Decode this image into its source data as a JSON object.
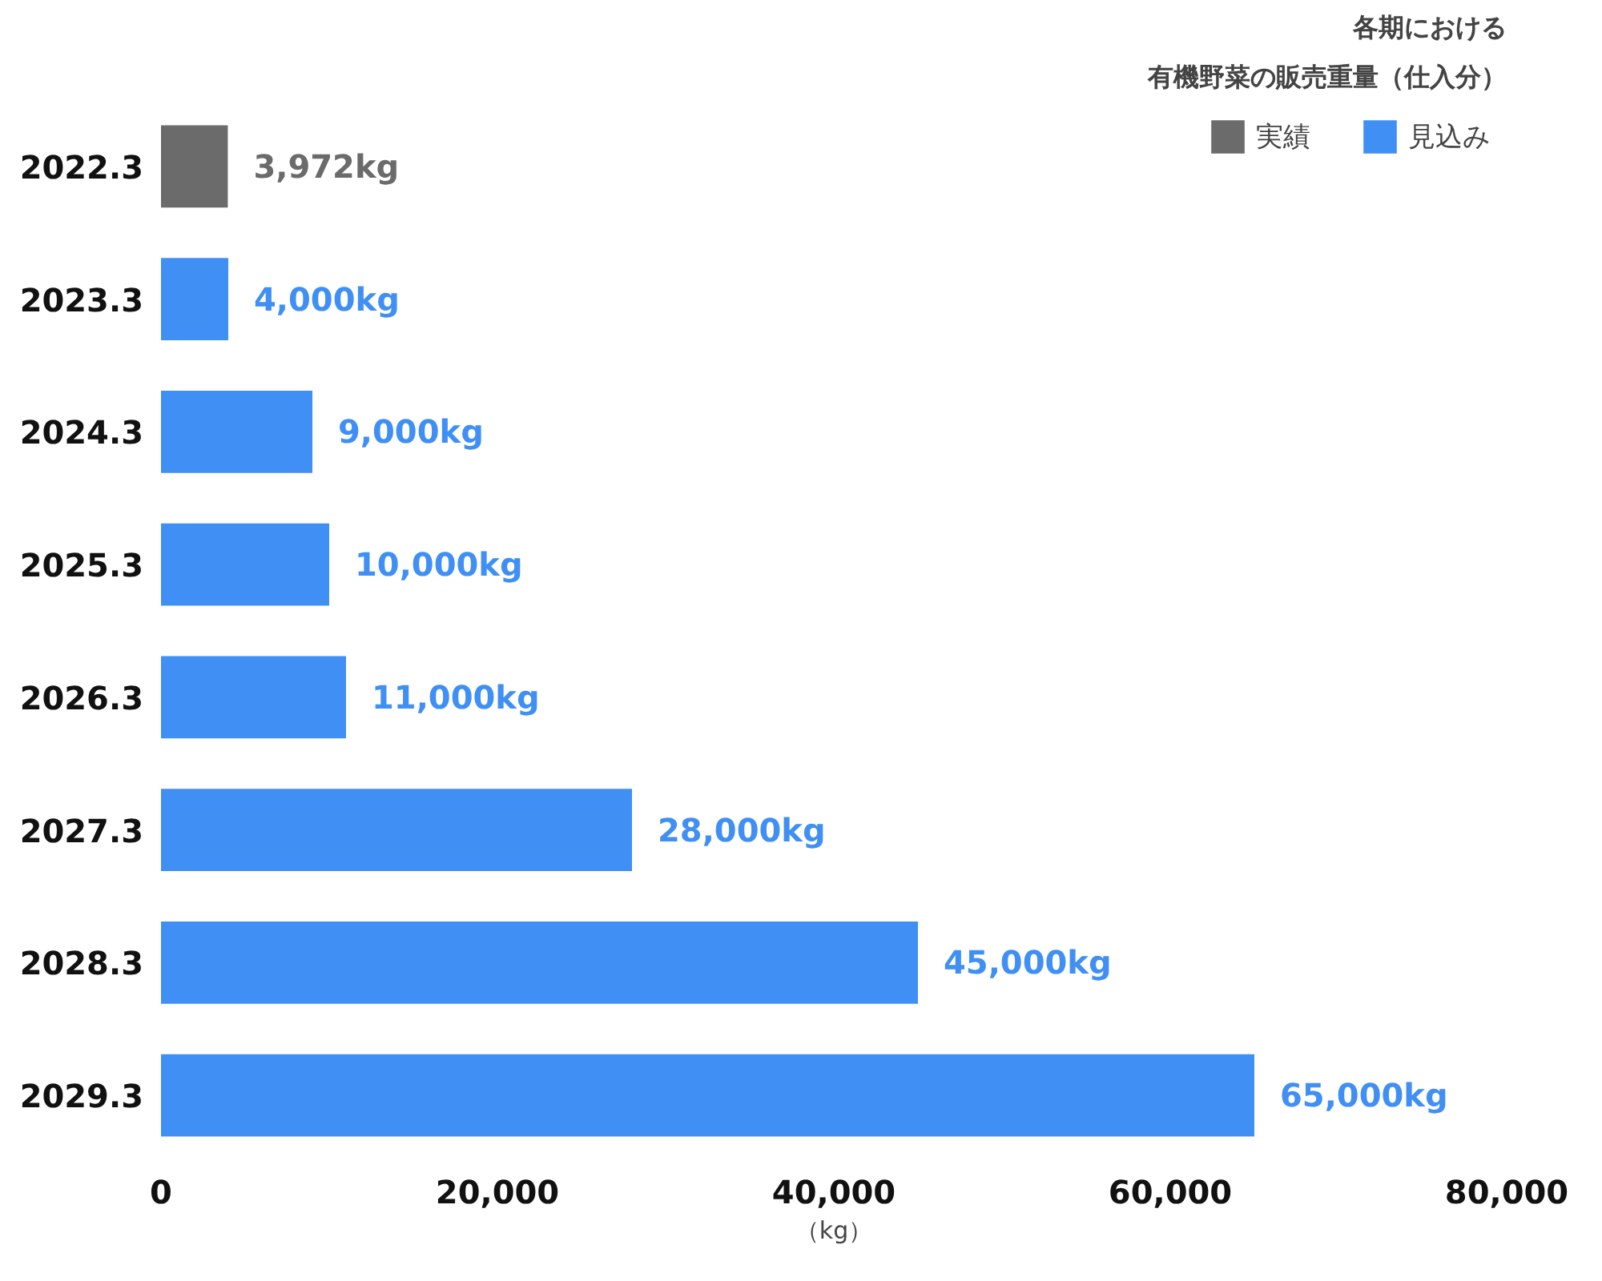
{
  "chart_data": {
    "type": "bar",
    "orientation": "horizontal",
    "title": "各期における",
    "subtitle": "有機野菜の販売重量（仕入分）",
    "xlabel": "（kg）",
    "categories": [
      "2022.3",
      "2023.3",
      "2024.3",
      "2025.3",
      "2026.3",
      "2027.3",
      "2028.3",
      "2029.3"
    ],
    "series": [
      {
        "name": "実績",
        "color": "#6b6b6b",
        "values": [
          3972,
          null,
          null,
          null,
          null,
          null,
          null,
          null
        ],
        "value_labels": [
          "3,972kg",
          null,
          null,
          null,
          null,
          null,
          null,
          null
        ]
      },
      {
        "name": "見込み",
        "color": "#3f8ff5",
        "values": [
          null,
          4000,
          9000,
          10000,
          11000,
          28000,
          45000,
          65000
        ],
        "value_labels": [
          null,
          "4,000kg",
          "9,000kg",
          "10,000kg",
          "11,000kg",
          "28,000kg",
          "45,000kg",
          "65,000kg"
        ]
      }
    ],
    "xlim": [
      0,
      80000
    ],
    "xticks": [
      0,
      {
        "value": 20000,
        "label": "20,000"
      },
      {
        "value": 40000,
        "label": "40,000"
      },
      {
        "value": 60000,
        "label": "60,000"
      },
      {
        "value": 80000,
        "label": "80,000"
      }
    ],
    "grid": false,
    "legend": "top right"
  }
}
